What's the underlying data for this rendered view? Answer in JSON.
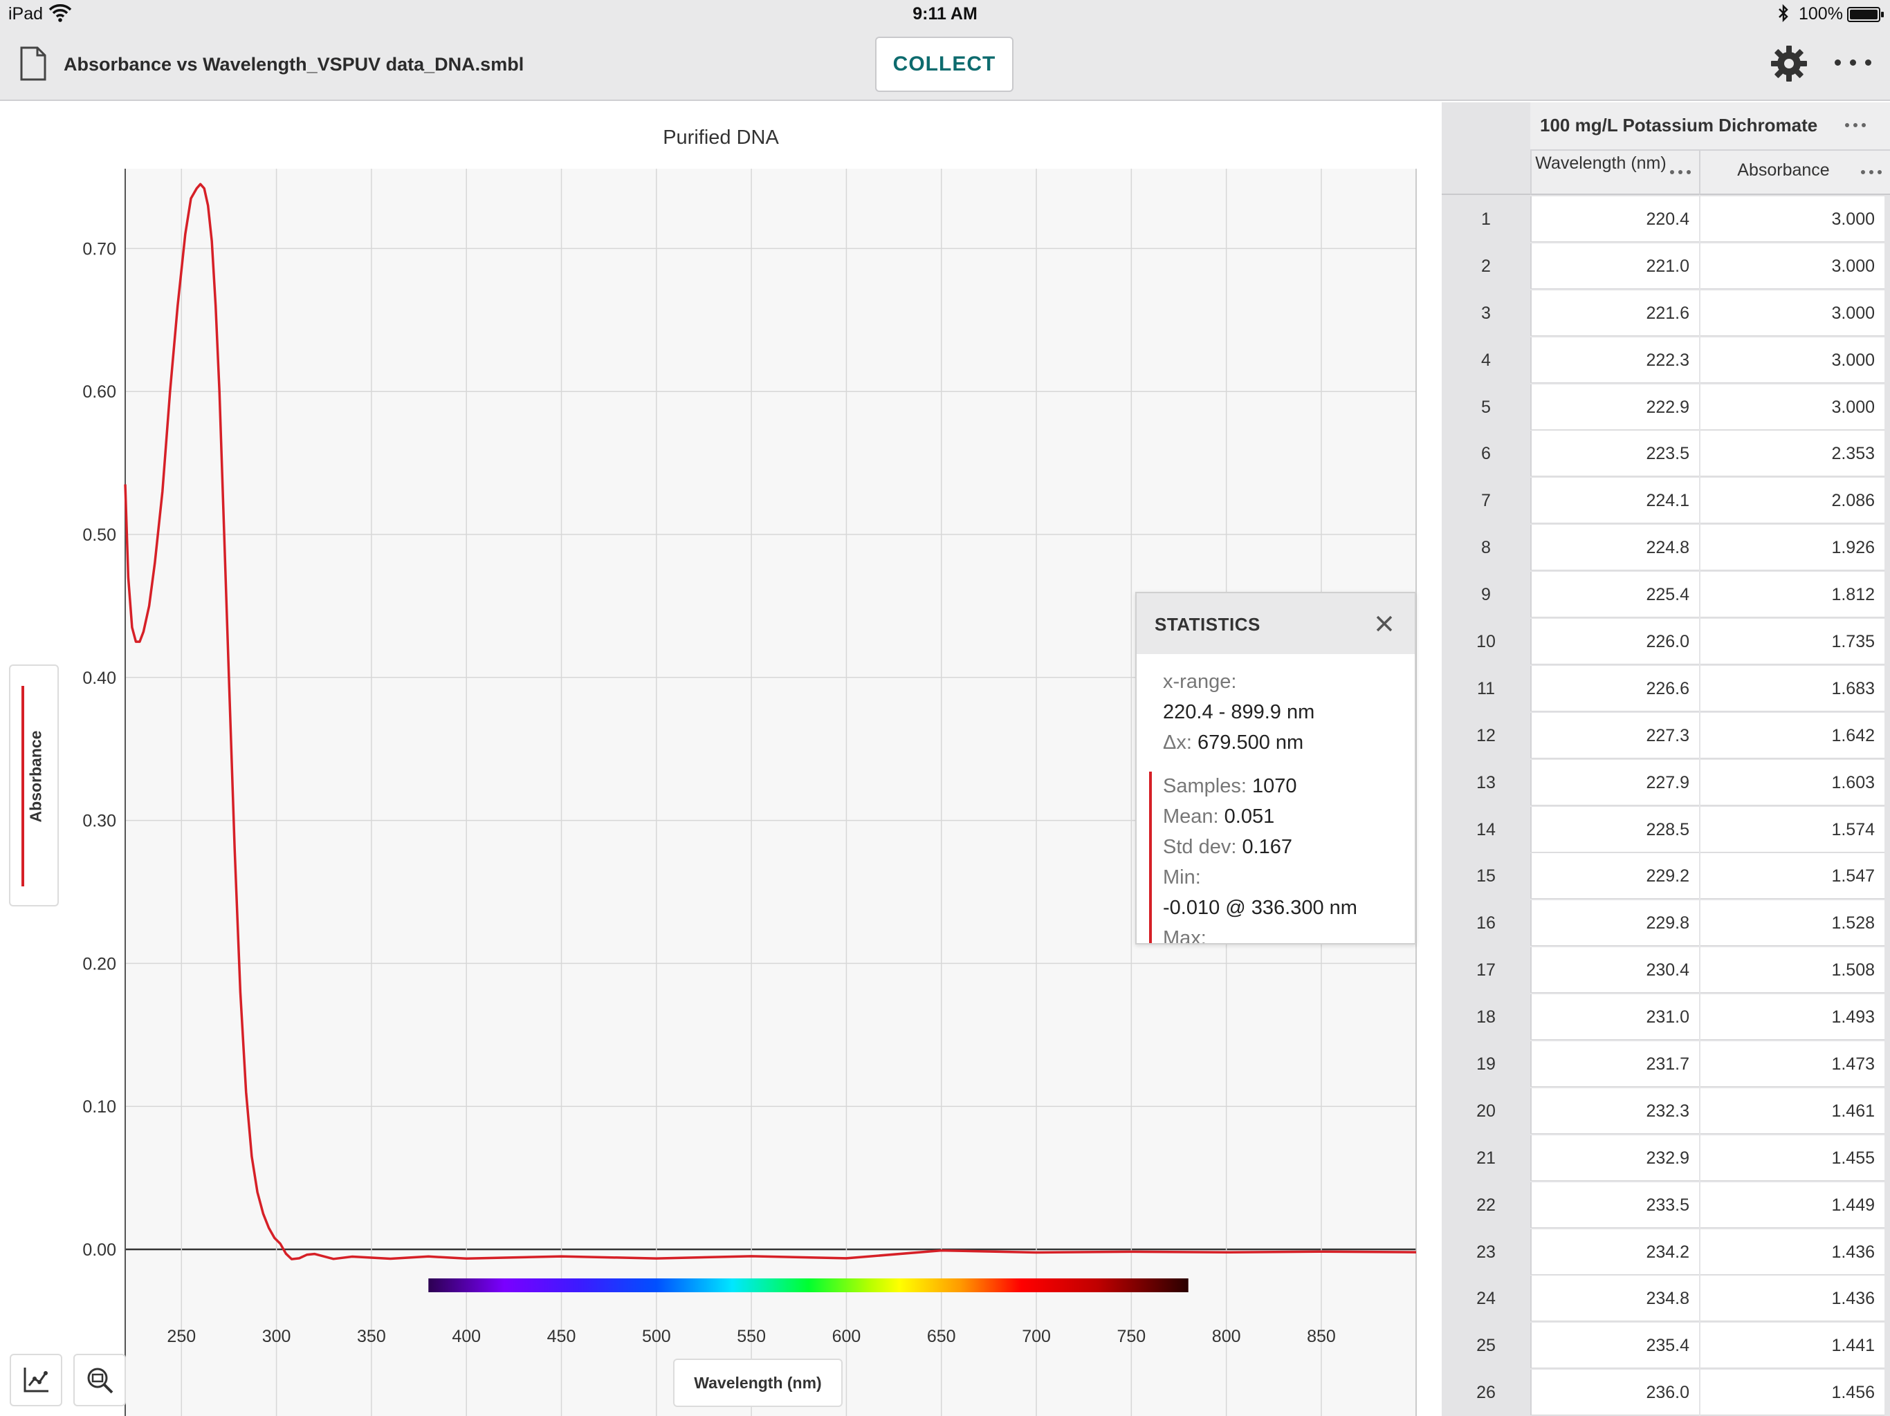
{
  "status_bar": {
    "carrier": "iPad",
    "time": "9:11 AM",
    "battery": "100%"
  },
  "toolbar": {
    "file_title": "Absorbance vs Wavelength_VSPUV data_DNA.smbl",
    "collect_label": "COLLECT"
  },
  "graph": {
    "x_axis_label": "Wavelength (nm)",
    "y_axis_label": "Absorbance",
    "line_color": "#d62027"
  },
  "chart_data": {
    "type": "line",
    "title": "Purified DNA",
    "xlabel": "Wavelength (nm)",
    "ylabel": "Absorbance",
    "xlim": [
      220.4,
      899.9
    ],
    "ylim": [
      -0.045,
      0.76
    ],
    "x_ticks": [
      "250",
      "300",
      "350",
      "400",
      "450",
      "500",
      "550",
      "600",
      "650",
      "700",
      "750",
      "800",
      "850"
    ],
    "y_ticks": [
      "0.00",
      "0.10",
      "0.20",
      "0.30",
      "0.40",
      "0.50",
      "0.60",
      "0.70"
    ],
    "grid": true,
    "spectrum_bar": {
      "from": 380,
      "to": 780
    },
    "series": [
      {
        "name": "Absorbance",
        "x": [
          220.4,
          222,
          224,
          226,
          228,
          230,
          233,
          236,
          240,
          244,
          248,
          252,
          255,
          258,
          260,
          262,
          264,
          266,
          268,
          270,
          272,
          275,
          278,
          281,
          284,
          287,
          290,
          293,
          296,
          299,
          302,
          305,
          308,
          312,
          316,
          320,
          330,
          340,
          360,
          380,
          400,
          450,
          500,
          550,
          600,
          650,
          700,
          750,
          800,
          850,
          899.9
        ],
        "y": [
          0.535,
          0.47,
          0.435,
          0.425,
          0.425,
          0.432,
          0.45,
          0.48,
          0.53,
          0.6,
          0.66,
          0.71,
          0.735,
          0.742,
          0.745,
          0.742,
          0.73,
          0.705,
          0.66,
          0.6,
          0.52,
          0.4,
          0.28,
          0.18,
          0.11,
          0.065,
          0.04,
          0.025,
          0.015,
          0.008,
          0.004,
          -0.003,
          -0.005,
          -0.004,
          -0.006,
          -0.005,
          -0.008,
          -0.006,
          -0.007,
          -0.005,
          -0.006,
          -0.004,
          -0.005,
          -0.003,
          -0.004,
          -0.003,
          -0.004,
          -0.003,
          -0.003,
          -0.002,
          -0.002
        ]
      }
    ]
  },
  "statistics": {
    "title": "STATISTICS",
    "x_range_label": "x-range:",
    "x_range_value": "220.4 - 899.9 nm",
    "dx_label": "Δx:",
    "dx_value": "679.500 nm",
    "samples_label": "Samples:",
    "samples_value": "1070",
    "mean_label": "Mean:",
    "mean_value": "0.051",
    "std_label": "Std dev:",
    "std_value": "0.167",
    "min_label": "Min:",
    "min_value": "-0.010 @ 336.300 nm",
    "max_label": "Max:"
  },
  "table": {
    "dataset_name": "100 mg/L Potassium Dichromate",
    "columns": [
      "Wavelength (nm)",
      "Absorbance"
    ],
    "rows": [
      [
        "1",
        "220.4",
        "3.000"
      ],
      [
        "2",
        "221.0",
        "3.000"
      ],
      [
        "3",
        "221.6",
        "3.000"
      ],
      [
        "4",
        "222.3",
        "3.000"
      ],
      [
        "5",
        "222.9",
        "3.000"
      ],
      [
        "6",
        "223.5",
        "2.353"
      ],
      [
        "7",
        "224.1",
        "2.086"
      ],
      [
        "8",
        "224.8",
        "1.926"
      ],
      [
        "9",
        "225.4",
        "1.812"
      ],
      [
        "10",
        "226.0",
        "1.735"
      ],
      [
        "11",
        "226.6",
        "1.683"
      ],
      [
        "12",
        "227.3",
        "1.642"
      ],
      [
        "13",
        "227.9",
        "1.603"
      ],
      [
        "14",
        "228.5",
        "1.574"
      ],
      [
        "15",
        "229.2",
        "1.547"
      ],
      [
        "16",
        "229.8",
        "1.528"
      ],
      [
        "17",
        "230.4",
        "1.508"
      ],
      [
        "18",
        "231.0",
        "1.493"
      ],
      [
        "19",
        "231.7",
        "1.473"
      ],
      [
        "20",
        "232.3",
        "1.461"
      ],
      [
        "21",
        "232.9",
        "1.455"
      ],
      [
        "22",
        "233.5",
        "1.449"
      ],
      [
        "23",
        "234.2",
        "1.436"
      ],
      [
        "24",
        "234.8",
        "1.436"
      ],
      [
        "25",
        "235.4",
        "1.441"
      ],
      [
        "26",
        "236.0",
        "1.456"
      ]
    ]
  }
}
